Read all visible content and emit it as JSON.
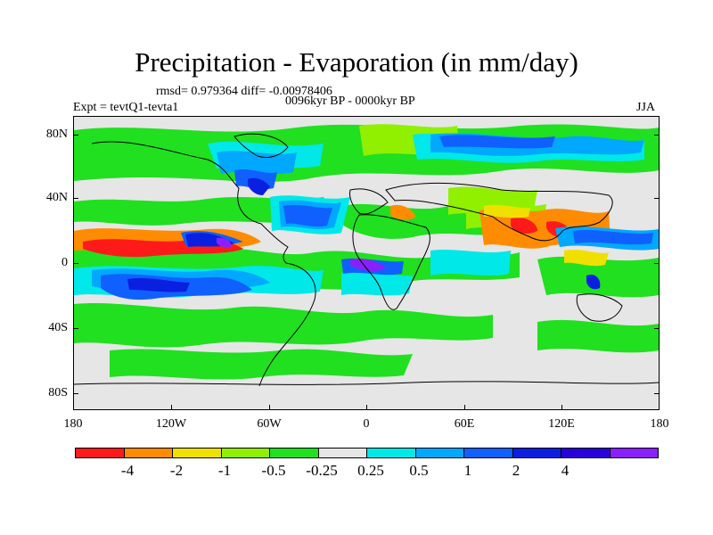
{
  "title": "Precipitation - Evaporation (in mm/day)",
  "stats": "rmsd= 0.979364 diff= -0.00978406",
  "period": "0096kyr BP - 0000kyr BP",
  "experiment": "Expt = tevtQ1-tevta1",
  "season": "JJA",
  "lat_labels": [
    "80N",
    "40N",
    "0",
    "40S",
    "80S"
  ],
  "lon_labels": [
    "180",
    "120W",
    "60W",
    "0",
    "60E",
    "120E",
    "180"
  ],
  "colorbar": {
    "colors": [
      "#ff1a1a",
      "#ff8c00",
      "#f0e000",
      "#90f000",
      "#20e020",
      "#e6e6e6",
      "#00e8e8",
      "#00a8ff",
      "#1060ff",
      "#0a20e0",
      "#2a00d8",
      "#8a20ff"
    ],
    "labels": [
      "-4",
      "-2",
      "-1",
      "-0.5",
      "-0.25",
      "0.25",
      "0.5",
      "1",
      "2",
      "4"
    ]
  },
  "map_colors": {
    "red": "#ff1a1a",
    "orange": "#ff8c00",
    "yellow": "#f0e000",
    "lime": "#90f000",
    "green": "#20e020",
    "gray": "#e6e6e6",
    "cyan": "#00e8e8",
    "sky": "#00a8ff",
    "blue": "#1060ff",
    "darkblue": "#0a20e0",
    "purple": "#8a20ff"
  }
}
